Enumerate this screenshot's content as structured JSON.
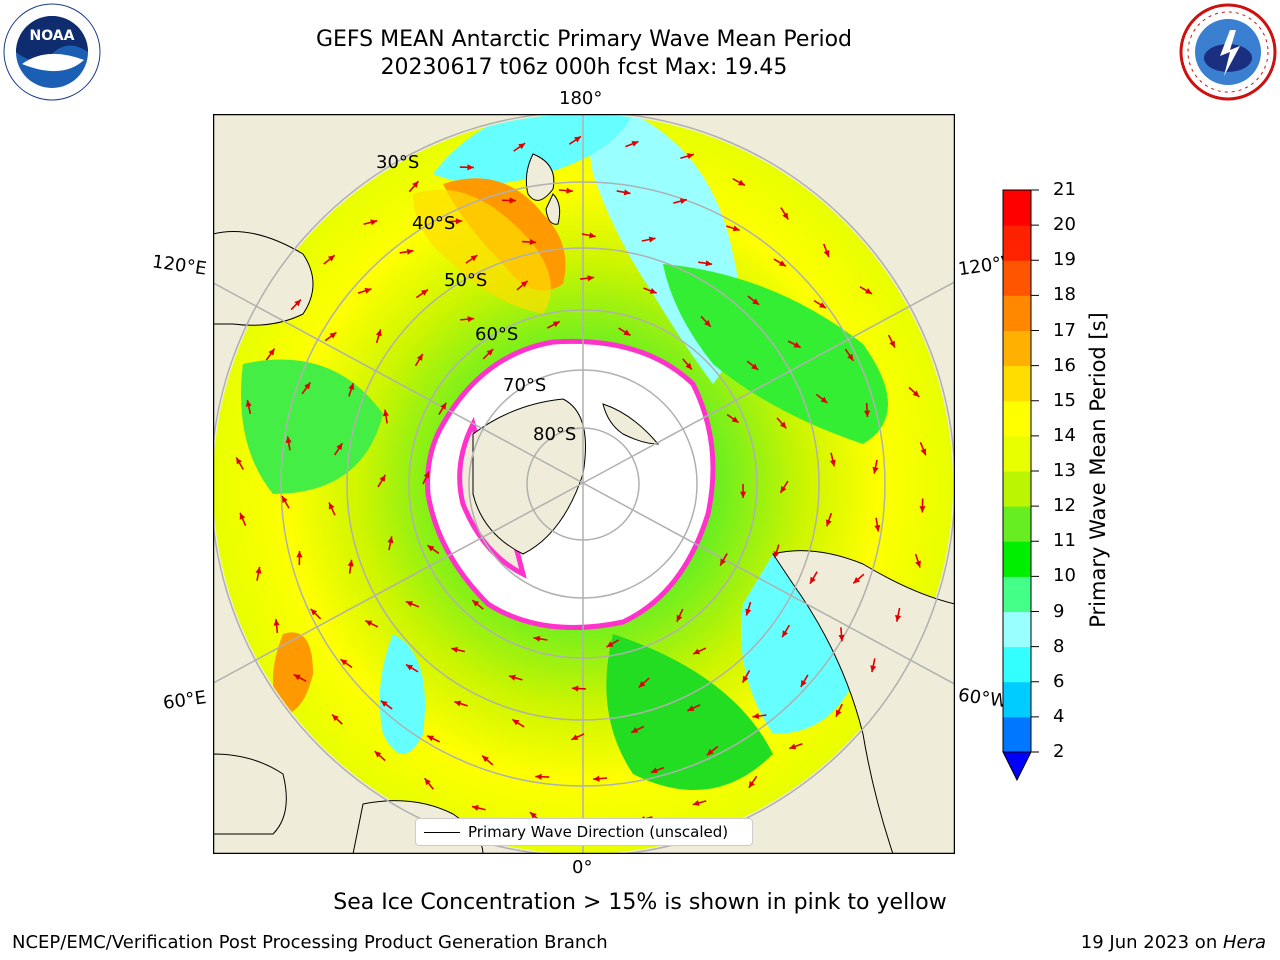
{
  "header": {
    "title_line1": "GEFS MEAN Antarctic Primary Wave Mean Period",
    "title_line2": "20230617 t06z 000h fcst   Max: 19.45"
  },
  "logos": {
    "left": {
      "name": "noaa-logo",
      "text": "NOAA",
      "ring_text": "NATIONAL OCEANIC AND ATMOSPHERIC ADMINISTRATION · U.S. DEPARTMENT OF COMMERCE"
    },
    "right": {
      "name": "nws-logo",
      "ring_text": "NATIONAL WEATHER SERVICE"
    }
  },
  "map": {
    "projection": "south-polar-stereographic",
    "longitude_labels": [
      "180°",
      "120°E",
      "120°W",
      "60°E",
      "60°W",
      "0°"
    ],
    "latitude_labels": [
      "30°S",
      "40°S",
      "50°S",
      "60°S",
      "70°S",
      "80°S"
    ],
    "legend": "Primary Wave Direction (unscaled)",
    "colors": {
      "land": "#efecd9",
      "ice": "#ffffff",
      "ice_edge": "#ff33cc",
      "arrow": "#e00000",
      "grid": "#b0b0b0"
    }
  },
  "colorbar": {
    "label": "Primary Wave Mean Period [s]",
    "ticks": [
      "2",
      "4",
      "6",
      "8",
      "9",
      "10",
      "11",
      "12",
      "13",
      "14",
      "15",
      "16",
      "17",
      "18",
      "19",
      "20",
      "21"
    ],
    "colors": [
      "#0077ff",
      "#00ccff",
      "#33ffff",
      "#99ffff",
      "#44ff88",
      "#00ee00",
      "#66ee22",
      "#bbf500",
      "#e8ff00",
      "#ffff00",
      "#ffdd00",
      "#ffb000",
      "#ff8800",
      "#ff5500",
      "#ff2200",
      "#ff0000"
    ],
    "under_color": "#0000ff"
  },
  "subtitle": "Sea Ice Concentration > 15% is shown in pink to yellow",
  "footer": {
    "left": "NCEP/EMC/Verification Post Processing Product Generation Branch",
    "right_date": "19 Jun 2023 on ",
    "right_host": "Hera"
  }
}
